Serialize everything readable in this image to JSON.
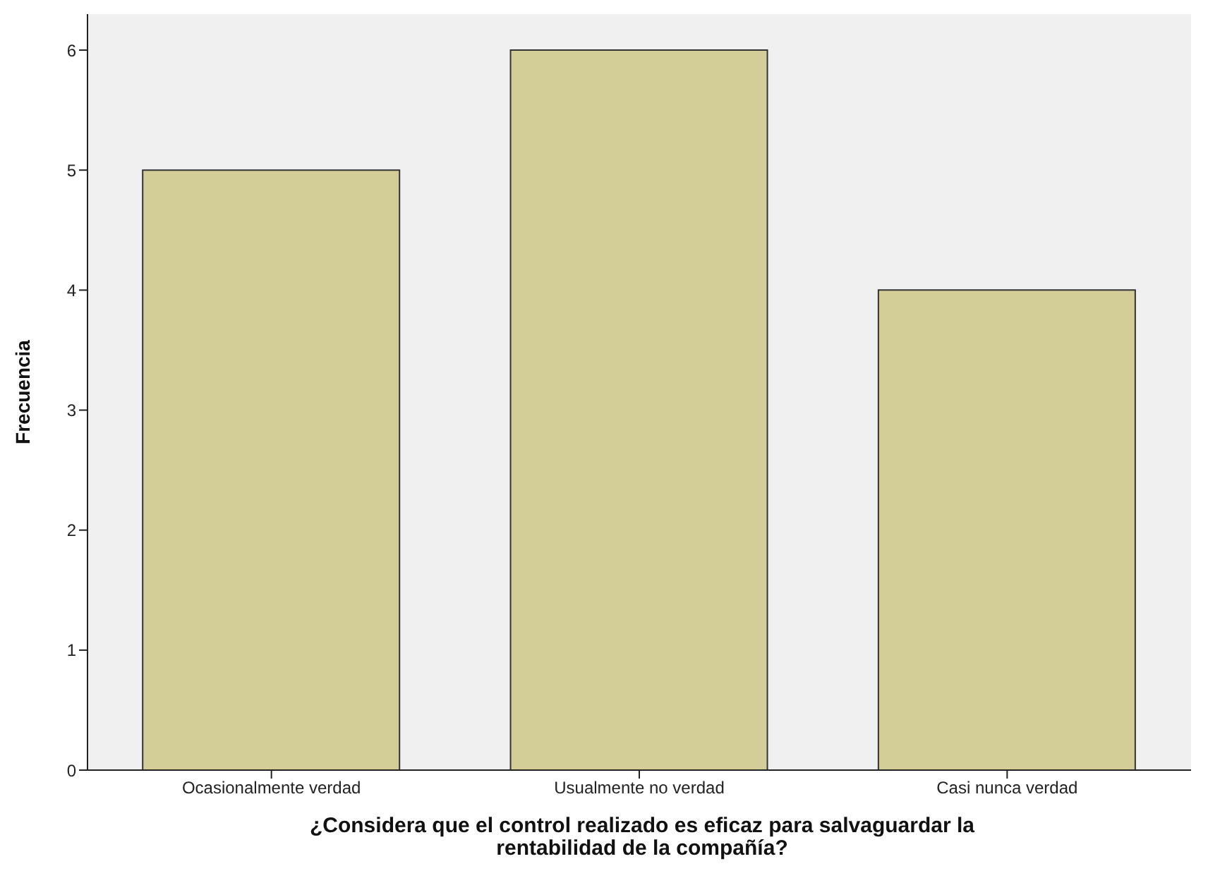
{
  "chart_data": {
    "type": "bar",
    "xlabel": "¿Considera que el control realizado es eficaz para salvaguardar la rentabilidad de la compañía?",
    "ylabel": "Frecuencia",
    "categories": [
      "Ocasionalmente verdad",
      "Usualmente no verdad",
      "Casi nunca verdad"
    ],
    "values": [
      5,
      6,
      4
    ],
    "color": "#d3ce97",
    "ylim": [
      0,
      6.3
    ],
    "yticks": [
      0,
      1,
      2,
      3,
      4,
      5,
      6
    ]
  }
}
